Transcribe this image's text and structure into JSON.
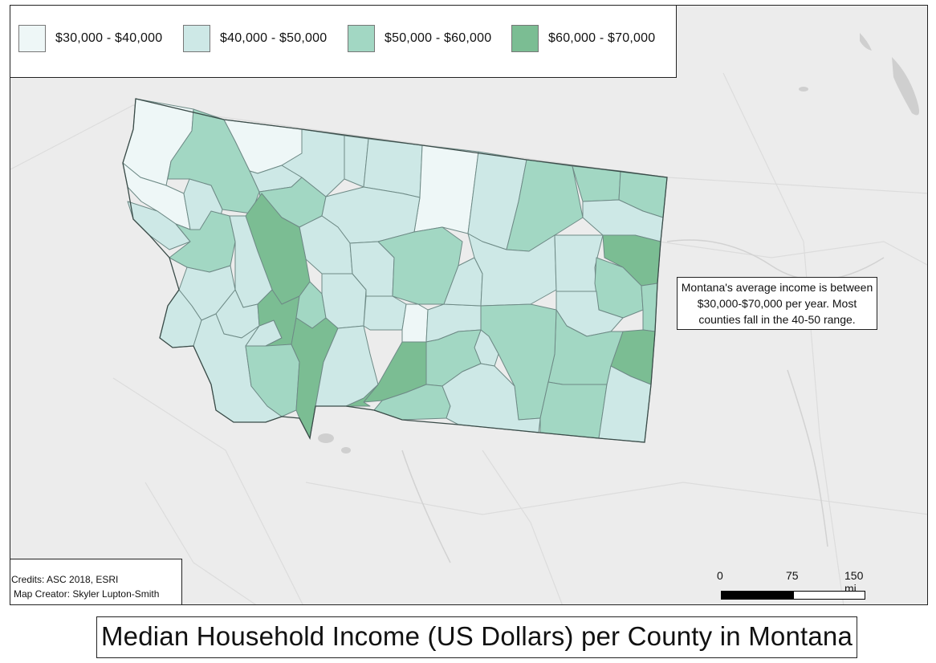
{
  "legend": {
    "items": [
      {
        "label": "$30,000 - $40,000",
        "color": "#eef7f7"
      },
      {
        "label": "$40,000 - $50,000",
        "color": "#cde8e6"
      },
      {
        "label": "$50,000 - $60,000",
        "color": "#a2d7c3"
      },
      {
        "label": "$60,000 - $70,000",
        "color": "#7bbd93"
      }
    ]
  },
  "note": {
    "lines": [
      "Montana's average income is between",
      "$30,000-$70,000 per year. Most",
      "counties fall in the 40-50 range."
    ]
  },
  "credits": {
    "line1": "Credits: ASC 2018, ESRI",
    "line2": "Map Creator: Skyler Lupton-Smith"
  },
  "scale": {
    "labels": [
      "0",
      "75",
      "150 mi"
    ]
  },
  "title": "Median Household Income (US Dollars) per County in Montana",
  "colors": {
    "basemap": "#ececec",
    "county_border": "#6e8a86",
    "state_outline": "#3a4b48",
    "water": "#c9c9c9",
    "roads": "#dadada"
  }
}
